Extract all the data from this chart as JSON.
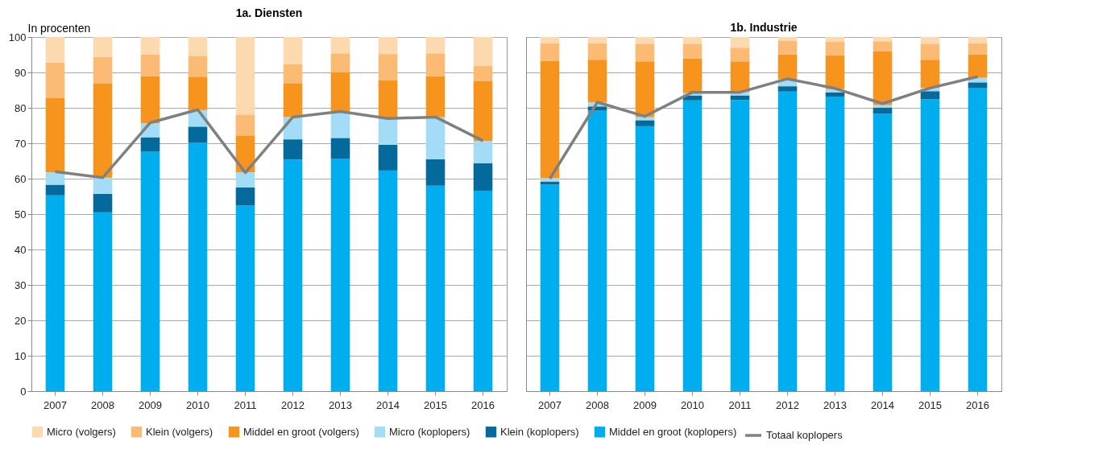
{
  "chart_data": [
    {
      "type": "bar",
      "title": "1a. Diensten",
      "ylabel": "In procenten",
      "stacked": true,
      "grid": "y",
      "legend": "bottom",
      "ylim": [
        0,
        100
      ],
      "yticks": [
        0,
        10,
        20,
        30,
        40,
        50,
        60,
        70,
        80,
        90,
        100
      ],
      "categories": [
        "2007",
        "2008",
        "2009",
        "2010",
        "2011",
        "2012",
        "2013",
        "2014",
        "2015",
        "2016"
      ],
      "series": [
        {
          "name": "Middel en groot (koplopers)",
          "color": "#00aeef",
          "values": [
            55.3,
            50.5,
            67.6,
            70.1,
            52.4,
            65.4,
            65.6,
            62.3,
            58.0,
            56.6
          ]
        },
        {
          "name": "Klein (koplopers)",
          "color": "#046a9b",
          "values": [
            3.0,
            5.2,
            4.1,
            4.6,
            5.1,
            5.7,
            5.9,
            7.3,
            7.5,
            7.8
          ]
        },
        {
          "name": "Micro (koplopers)",
          "color": "#a2dcf7",
          "values": [
            3.5,
            4.6,
            3.9,
            4.7,
            4.3,
            6.3,
            7.5,
            7.4,
            11.9,
            6.3
          ]
        },
        {
          "name": "Middel en groot (volgers)",
          "color": "#f7941d",
          "values": [
            20.9,
            26.5,
            13.4,
            9.4,
            10.4,
            9.6,
            11.0,
            10.7,
            11.6,
            16.8
          ]
        },
        {
          "name": "Klein (volgers)",
          "color": "#fbbb74",
          "values": [
            10.1,
            7.6,
            6.0,
            5.9,
            5.9,
            5.3,
            5.4,
            7.5,
            6.4,
            4.3
          ]
        },
        {
          "name": "Micro (volgers)",
          "color": "#fdd9b0",
          "values": [
            7.2,
            5.6,
            5.0,
            5.3,
            21.9,
            7.7,
            4.6,
            4.8,
            4.6,
            8.2
          ]
        },
        {
          "name": "Totaal koplopers",
          "type": "line",
          "color": "#808080",
          "values": [
            62.0,
            60.3,
            75.8,
            79.5,
            61.7,
            77.4,
            79.0,
            77.0,
            77.4,
            70.7
          ]
        }
      ]
    },
    {
      "type": "bar",
      "title": "1b. Industrie",
      "stacked": true,
      "grid": "y",
      "legend": "bottom",
      "tick_labels": "x",
      "ylim": [
        0,
        100
      ],
      "yticks": [
        0,
        10,
        20,
        30,
        40,
        50,
        60,
        70,
        80,
        90,
        100
      ],
      "categories": [
        "2007",
        "2008",
        "2009",
        "2010",
        "2011",
        "2012",
        "2013",
        "2014",
        "2015",
        "2016"
      ],
      "series": [
        {
          "name": "Middel en groot (koplopers)",
          "color": "#00aeef",
          "values": [
            58.3,
            79.2,
            74.8,
            82.1,
            82.2,
            84.6,
            83.1,
            78.3,
            82.4,
            85.6
          ]
        },
        {
          "name": "Klein (koplopers)",
          "color": "#046a9b",
          "values": [
            0.9,
            1.2,
            1.7,
            1.4,
            1.3,
            1.5,
            1.3,
            1.8,
            2.3,
            1.6
          ]
        },
        {
          "name": "Micro (koplopers)",
          "color": "#a2dcf7",
          "values": [
            0.9,
            1.2,
            0.9,
            0.7,
            1.0,
            2.0,
            0.9,
            0.7,
            0.9,
            1.3
          ]
        },
        {
          "name": "Middel en groot (volgers)",
          "color": "#f7941d",
          "values": [
            33.1,
            12.0,
            15.7,
            9.7,
            8.6,
            7.0,
            9.5,
            15.1,
            8.0,
            6.6
          ]
        },
        {
          "name": "Klein (volgers)",
          "color": "#fbbb74",
          "values": [
            5.0,
            4.6,
            5.0,
            4.2,
            3.9,
            3.9,
            3.9,
            2.9,
            4.5,
            3.1
          ]
        },
        {
          "name": "Micro (volgers)",
          "color": "#fdd9b0",
          "values": [
            1.8,
            1.8,
            1.9,
            1.9,
            3.0,
            1.0,
            1.3,
            1.2,
            1.9,
            1.8
          ]
        },
        {
          "name": "Totaal koplopers",
          "type": "line",
          "color": "#808080",
          "values": [
            60.0,
            81.6,
            77.6,
            84.4,
            84.4,
            88.2,
            85.5,
            81.2,
            85.6,
            88.8
          ]
        }
      ]
    }
  ]
}
